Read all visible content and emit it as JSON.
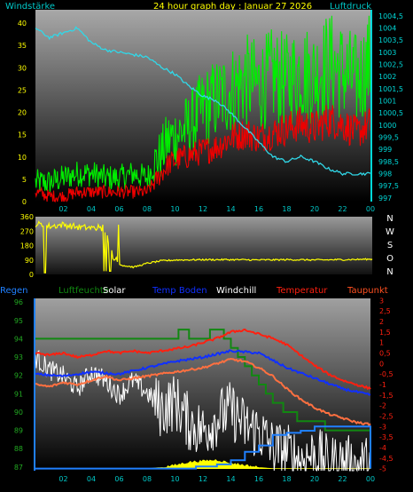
{
  "title": "24 hour graph day : Januar 27 2026",
  "colors": {
    "wind_gust": "#00ee00",
    "wind_avg": "#ee0000",
    "pressure": "#30d8e8",
    "direction": "#ffff00",
    "axis_text": "#00d8d8",
    "humidity": "#118811",
    "solar": "#ffff00",
    "temp_ground": "#1030ff",
    "windchill": "#ffffff",
    "temperature": "#ff2010",
    "dewpoint": "#ff7040",
    "rain": "#2080ff",
    "panel_top": "#9a9a9a",
    "panel_bottom": "#000000"
  },
  "chart_data": [
    {
      "type": "line",
      "labels": {
        "left": "Windstärke",
        "right": "Luftdruck"
      },
      "x_ticks": [
        "02",
        "04",
        "06",
        "08",
        "10",
        "12",
        "14",
        "16",
        "18",
        "20",
        "22",
        "00"
      ],
      "y_left_ticks": [
        0,
        5,
        10,
        15,
        20,
        25,
        30,
        35,
        40
      ],
      "y_left_range": [
        0,
        43
      ],
      "y_right_ticks": [
        "997",
        "997,5",
        "998",
        "998,5",
        "999",
        "999,5",
        "1000",
        "1000,5",
        "1001",
        "1001,5",
        "1002",
        "1002,5",
        "1003",
        "1003,5",
        "1004",
        "1004,5"
      ],
      "y_right_range": [
        996.85,
        1004.75
      ],
      "series": [
        {
          "key": "gust",
          "color_key": "wind_gust",
          "x": [
            0,
            1,
            2,
            3,
            4,
            5,
            6,
            7,
            8,
            8.5,
            9,
            9.5,
            10,
            11,
            12,
            13,
            14,
            15,
            16,
            17,
            18,
            19,
            20,
            21,
            22,
            23,
            24
          ],
          "y": [
            4,
            4,
            5,
            6,
            6,
            5,
            5,
            6,
            5,
            8,
            10,
            13,
            14,
            16,
            20,
            22,
            24,
            26,
            25,
            27,
            26,
            28,
            27,
            30,
            28,
            26,
            30
          ]
        },
        {
          "key": "avg",
          "color_key": "wind_avg",
          "x": [
            0,
            1,
            2,
            3,
            4,
            5,
            6,
            7,
            8,
            8.5,
            9,
            9.5,
            10,
            11,
            12,
            13,
            14,
            15,
            16,
            17,
            18,
            19,
            20,
            21,
            22,
            23,
            24
          ],
          "y": [
            2,
            1,
            1,
            2,
            2,
            2,
            2,
            2,
            2,
            4,
            6,
            8,
            9,
            10,
            11,
            12,
            14,
            15,
            14,
            15,
            16,
            17,
            16,
            18,
            17,
            15,
            17
          ]
        },
        {
          "key": "pressure",
          "color_key": "pressure",
          "axis": "right",
          "x": [
            0,
            1,
            2,
            3,
            4,
            5,
            6,
            7,
            8,
            9,
            10,
            11,
            12,
            13,
            14,
            15,
            16,
            17,
            18,
            19,
            20,
            21,
            22,
            23,
            24
          ],
          "y": [
            1004,
            1003.6,
            1003.8,
            1004,
            1003.4,
            1003.1,
            1003,
            1002.9,
            1002.8,
            1002.4,
            1002.1,
            1001.6,
            1001.2,
            1001,
            1000.5,
            999.9,
            999.3,
            998.7,
            998.5,
            998.7,
            998.5,
            998.2,
            998.0,
            998.0,
            998.0
          ]
        }
      ]
    },
    {
      "type": "line",
      "right_labels": [
        "N",
        "W",
        "S",
        "O",
        "N"
      ],
      "y_ticks": [
        0,
        90,
        180,
        270,
        360
      ],
      "y_range": [
        0,
        360
      ],
      "x_ticks": [
        "02",
        "04",
        "06",
        "08",
        "10",
        "12",
        "14",
        "16",
        "18",
        "20",
        "22",
        "00"
      ],
      "series": [
        {
          "key": "direction",
          "color_key": "direction",
          "x": [
            0,
            1,
            2,
            3,
            4,
            5,
            5.5,
            6,
            7,
            8,
            9,
            10,
            12,
            14,
            16,
            18,
            20,
            22,
            24
          ],
          "y": [
            315,
            300,
            310,
            295,
            290,
            280,
            120,
            60,
            45,
            70,
            85,
            90,
            92,
            92,
            90,
            92,
            90,
            92,
            95
          ]
        }
      ]
    },
    {
      "type": "line",
      "legend": [
        "Regen",
        "Luftfeuchte",
        "Solar",
        "Temp Boden",
        "Windchill",
        "Temperatur",
        "Taupunkt"
      ],
      "x_ticks": [
        "02",
        "04",
        "06",
        "08",
        "10",
        "12",
        "14",
        "16",
        "18",
        "20",
        "22",
        "00"
      ],
      "y_left_ticks": [
        87,
        88,
        89,
        90,
        91,
        92,
        93,
        94,
        95,
        96
      ],
      "y_left_range": [
        86.8,
        96.2
      ],
      "y_right_ticks": [
        "3",
        "2,5",
        "2",
        "1,5",
        "1",
        "0,5",
        "0",
        "-0,5",
        "-1",
        "-1,5",
        "-2",
        "-2,5",
        "-3",
        "-3,5",
        "-4",
        "-4,5",
        "-5"
      ],
      "y_right_range": [
        -5.1,
        3.1
      ],
      "series": [
        {
          "key": "humidity",
          "color_key": "humidity",
          "x": [
            0,
            4,
            8,
            10,
            10.5,
            11,
            12,
            13,
            14,
            15,
            16,
            17,
            18,
            19,
            20,
            21,
            22,
            24
          ],
          "y": [
            94,
            94,
            94,
            94,
            94.5,
            94,
            94,
            94.5,
            93.5,
            92.5,
            91.5,
            90.5,
            90,
            89.5,
            89.5,
            89,
            89,
            89
          ]
        },
        {
          "key": "temperature",
          "color_key": "temperature",
          "x": [
            0,
            1,
            2,
            3,
            4,
            5,
            6,
            7,
            8,
            9,
            10,
            11,
            12,
            13,
            14,
            15,
            16,
            17,
            18,
            19,
            20,
            21,
            22,
            23,
            24
          ],
          "y": [
            0.5,
            0.4,
            0.5,
            0.3,
            0.4,
            0.6,
            0.5,
            0.6,
            0.5,
            0.6,
            0.7,
            0.8,
            1.0,
            1.2,
            1.5,
            1.6,
            1.4,
            1.2,
            0.9,
            0.4,
            -0.1,
            -0.5,
            -0.8,
            -1.0,
            -1.2
          ]
        },
        {
          "key": "temp_ground",
          "color_key": "temp_ground",
          "x": [
            0,
            2,
            4,
            6,
            8,
            10,
            12,
            14,
            16,
            18,
            20,
            22,
            24
          ],
          "y": [
            -0.5,
            -0.6,
            -0.4,
            -0.5,
            -0.2,
            0.1,
            0.3,
            0.6,
            0.5,
            -0.2,
            -0.7,
            -1.2,
            -1.5
          ]
        },
        {
          "key": "dewpoint",
          "color_key": "dewpoint",
          "x": [
            0,
            1,
            2,
            3,
            4,
            5,
            6,
            7,
            8,
            9,
            10,
            11,
            12,
            13,
            14,
            15,
            16,
            17,
            18,
            19,
            20,
            21,
            22,
            23,
            24
          ],
          "y": [
            -1,
            -1.1,
            -0.9,
            -1,
            -0.8,
            -0.6,
            -0.8,
            -0.7,
            -0.6,
            -0.5,
            -0.4,
            -0.3,
            -0.2,
            0,
            0.2,
            0.1,
            -0.2,
            -0.6,
            -1.2,
            -1.7,
            -2.1,
            -2.4,
            -2.6,
            -2.8,
            -2.9
          ]
        },
        {
          "key": "windchill",
          "color_key": "windchill",
          "x": [
            0,
            1,
            2,
            3,
            4,
            5,
            6,
            7,
            8,
            9,
            10,
            11,
            12,
            13,
            14,
            15,
            16,
            17,
            18,
            19,
            20,
            21,
            22,
            23,
            24
          ],
          "y": [
            0.3,
            -0.3,
            -0.6,
            -1.2,
            -0.4,
            -0.8,
            -1.5,
            -0.8,
            -1.4,
            -2.2,
            -1.8,
            -2.8,
            -3.2,
            -2.6,
            -2.2,
            -3.0,
            -3.2,
            -4.0,
            -4.2,
            -4.6,
            -4.3,
            -4.8,
            -4.7,
            -4.9,
            -4.8
          ]
        },
        {
          "key": "rain",
          "color_key": "rain",
          "x": [
            0,
            11,
            11.5,
            13,
            14,
            15,
            16,
            17,
            18,
            19,
            20,
            21,
            22,
            23,
            24
          ],
          "y": [
            -5,
            -5,
            -4.9,
            -4.8,
            -4.6,
            -4.2,
            -3.9,
            -3.4,
            -3.3,
            -3.2,
            -3.0,
            -3.0,
            -3.0,
            -3.0,
            -3.0
          ]
        },
        {
          "key": "solar",
          "color_key": "solar",
          "x": [
            0,
            8,
            9,
            10,
            11,
            12,
            13,
            14,
            15,
            16,
            17,
            24
          ],
          "y": [
            -5,
            -5,
            -4.95,
            -4.85,
            -4.7,
            -4.65,
            -4.6,
            -4.75,
            -4.85,
            -4.95,
            -5,
            -5
          ]
        }
      ]
    }
  ]
}
